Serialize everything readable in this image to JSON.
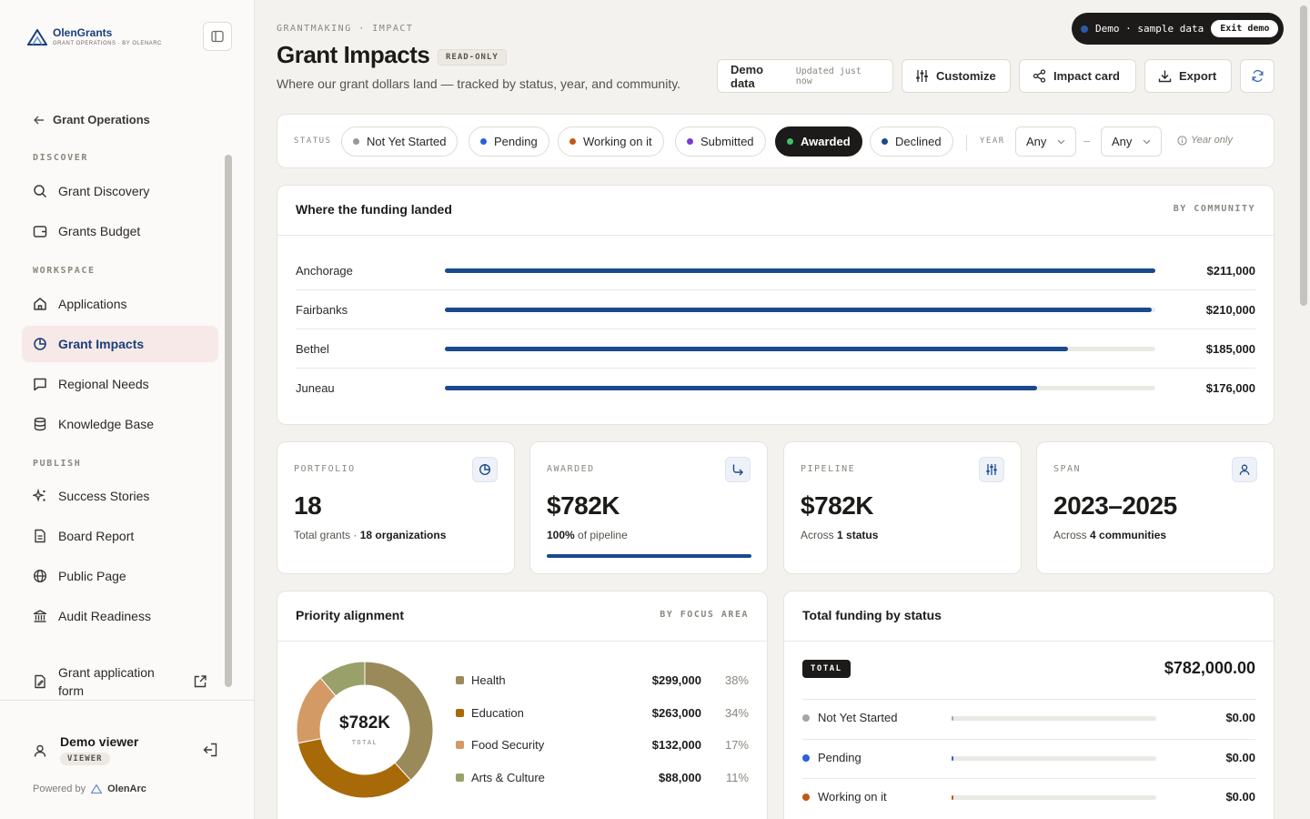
{
  "brand": {
    "name": "OlenGrants",
    "tagline": "GRANT OPERATIONS · BY OLENARC"
  },
  "sidebar": {
    "back_label": "Grant Operations",
    "sections": {
      "discover": "DISCOVER",
      "workspace": "WORKSPACE",
      "publish": "PUBLISH"
    },
    "items": [
      {
        "label": "Grant Discovery",
        "icon": "search-icon"
      },
      {
        "label": "Grants Budget",
        "icon": "wallet-icon"
      },
      {
        "label": "Applications",
        "icon": "home-icon"
      },
      {
        "label": "Grant Impacts",
        "icon": "pie-chart-icon",
        "active": true
      },
      {
        "label": "Regional Needs",
        "icon": "message-icon"
      },
      {
        "label": "Knowledge Base",
        "icon": "database-icon"
      },
      {
        "label": "Success Stories",
        "icon": "sparkle-icon"
      },
      {
        "label": "Board Report",
        "icon": "document-icon"
      },
      {
        "label": "Public Page",
        "icon": "globe-icon"
      },
      {
        "label": "Audit Readiness",
        "icon": "bank-icon"
      }
    ],
    "form_item": "Grant application form",
    "user": {
      "name": "Demo viewer",
      "role": "VIEWER"
    },
    "powered_by": "Powered by",
    "powered_brand": "OlenArc"
  },
  "header": {
    "breadcrumb": "GRANTMAKING · IMPACT",
    "title": "Grant Impacts",
    "badge": "READ-ONLY",
    "subtitle": "Where our grant dollars land — tracked by status, year, and community."
  },
  "demo_banner": {
    "label": "Demo · sample data",
    "exit": "Exit demo"
  },
  "toolbar": {
    "demo_data": "Demo data",
    "updated": "Updated just now",
    "customize": "Customize",
    "impact_card": "Impact card",
    "export": "Export"
  },
  "filters": {
    "status_label": "STATUS",
    "statuses": [
      {
        "label": "Not Yet Started",
        "color": "#9a9893"
      },
      {
        "label": "Pending",
        "color": "#2a62d8"
      },
      {
        "label": "Working on it",
        "color": "#c05a14"
      },
      {
        "label": "Submitted",
        "color": "#7a3ad6"
      },
      {
        "label": "Awarded",
        "color": "#3ec26a",
        "selected": true
      },
      {
        "label": "Declined",
        "color": "#1b4a8c"
      }
    ],
    "year_label": "YEAR",
    "year_from": "Any",
    "year_to": "Any",
    "dash": "–",
    "hint": "Year only"
  },
  "funding": {
    "title": "Where the funding landed",
    "tag": "BY COMMUNITY",
    "max": 211000,
    "rows": [
      {
        "name": "Anchorage",
        "value": 211000,
        "label": "$211,000"
      },
      {
        "name": "Fairbanks",
        "value": 210000,
        "label": "$210,000"
      },
      {
        "name": "Bethel",
        "value": 185000,
        "label": "$185,000"
      },
      {
        "name": "Juneau",
        "value": 176000,
        "label": "$176,000"
      }
    ]
  },
  "kpis": {
    "portfolio": {
      "label": "PORTFOLIO",
      "value": "18",
      "sub_pre": "Total grants · ",
      "sub_bold": "18 organizations",
      "sub_post": ""
    },
    "awarded": {
      "label": "AWARDED",
      "value": "$782K",
      "sub_pre": "",
      "sub_bold": "100%",
      "sub_post": " of pipeline",
      "progress": 1.0
    },
    "pipeline": {
      "label": "PIPELINE",
      "value": "$782K",
      "sub_pre": "Across ",
      "sub_bold": "1 status",
      "sub_post": ""
    },
    "span": {
      "label": "SPAN",
      "value": "2023–2025",
      "sub_pre": "Across ",
      "sub_bold": "4 communities",
      "sub_post": ""
    }
  },
  "priority": {
    "title": "Priority alignment",
    "tag": "BY FOCUS AREA",
    "center_value": "$782K",
    "center_label": "TOTAL",
    "items": [
      {
        "name": "Health",
        "value": 299000,
        "label": "$299,000",
        "pct": "38%",
        "color": "#9a8a5a"
      },
      {
        "name": "Education",
        "value": 263000,
        "label": "$263,000",
        "pct": "34%",
        "color": "#a86a08"
      },
      {
        "name": "Food Security",
        "value": 132000,
        "label": "$132,000",
        "pct": "17%",
        "color": "#d39a66"
      },
      {
        "name": "Arts & Culture",
        "value": 88000,
        "label": "$88,000",
        "pct": "11%",
        "color": "#9aa06a"
      }
    ]
  },
  "by_status": {
    "title": "Total funding by status",
    "total_label": "TOTAL",
    "total_value": "$782,000.00",
    "rows": [
      {
        "name": "Not Yet Started",
        "value": "$0.00",
        "color": "#a8a6a1"
      },
      {
        "name": "Pending",
        "value": "$0.00",
        "color": "#2a62d8"
      },
      {
        "name": "Working on it",
        "value": "$0.00",
        "color": "#c05a14"
      }
    ]
  }
}
